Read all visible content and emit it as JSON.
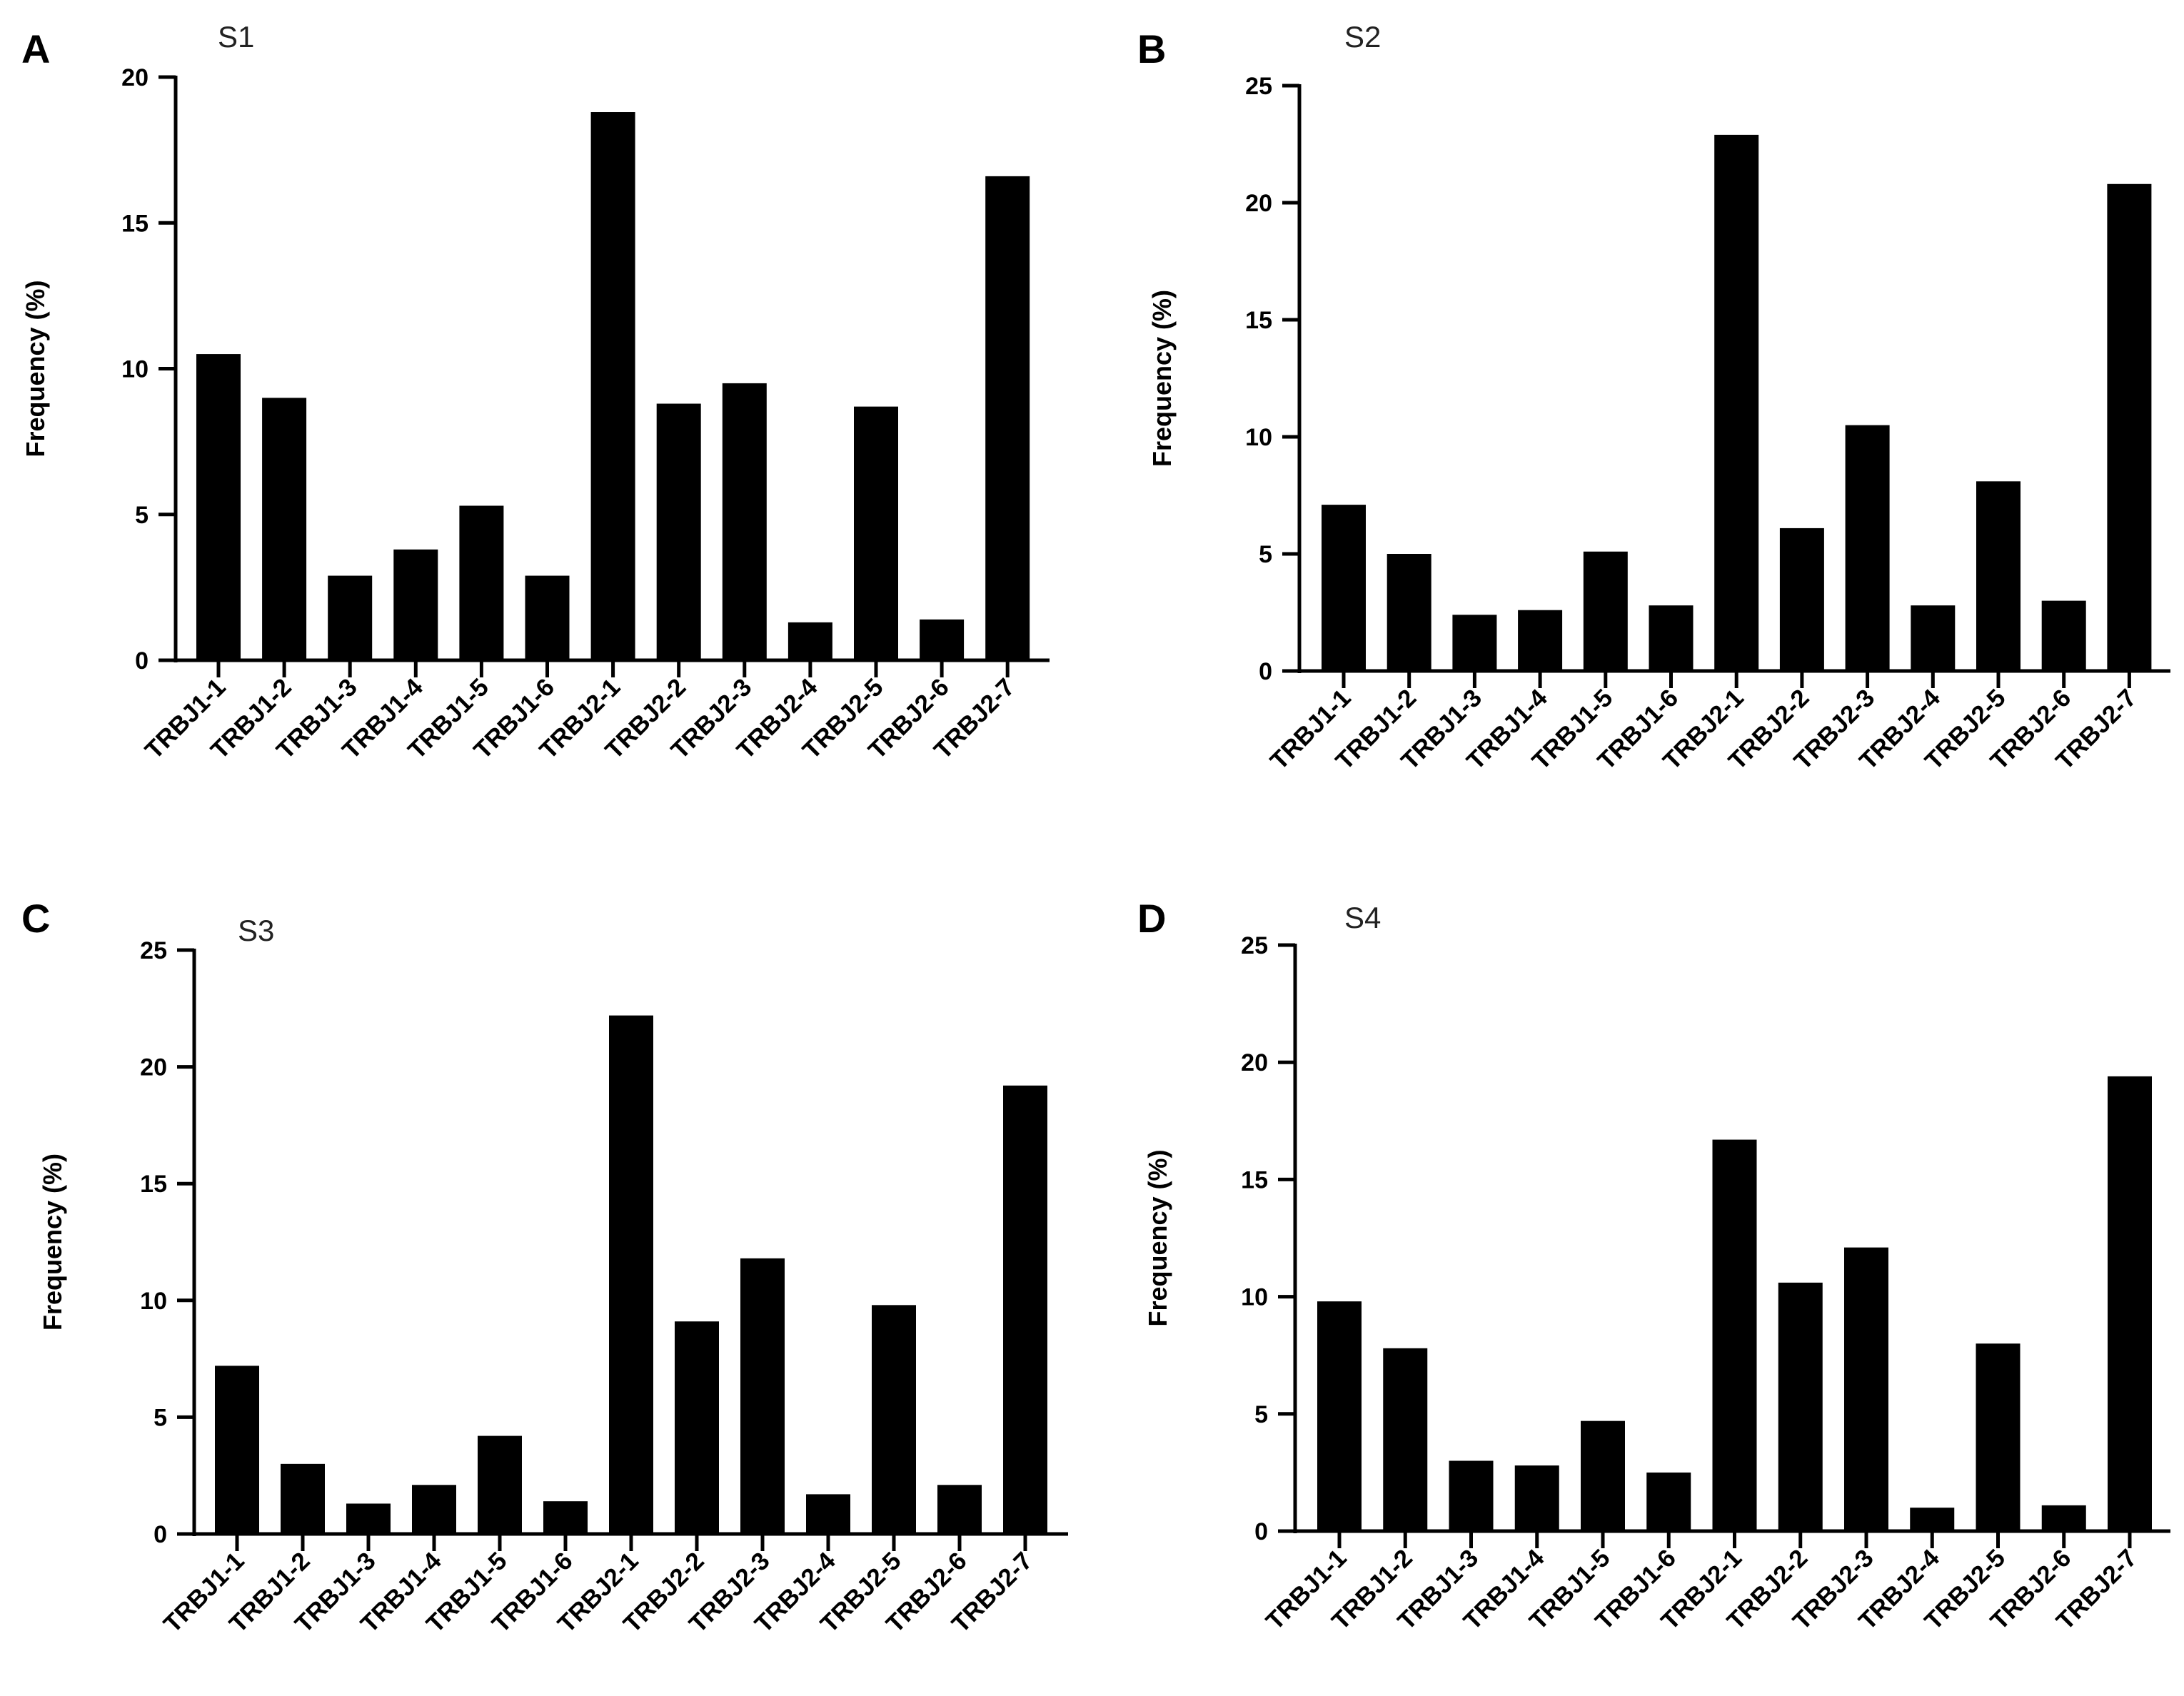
{
  "figure": {
    "panel_letters": [
      "A",
      "B",
      "C",
      "D"
    ]
  },
  "chart_data": [
    {
      "type": "bar",
      "title": "S1",
      "ylabel": "Frequency (%)",
      "xlabel": "",
      "categories": [
        "TRBJ1-1",
        "TRBJ1-2",
        "TRBJ1-3",
        "TRBJ1-4",
        "TRBJ1-5",
        "TRBJ1-6",
        "TRBJ2-1",
        "TRBJ2-2",
        "TRBJ2-3",
        "TRBJ2-4",
        "TRBJ2-5",
        "TRBJ2-6",
        "TRBJ2-7"
      ],
      "values": [
        10.5,
        9.0,
        2.9,
        3.8,
        5.3,
        2.9,
        18.8,
        8.8,
        9.5,
        1.3,
        8.7,
        1.4,
        16.6
      ],
      "ylim": [
        0,
        20
      ],
      "yticks": [
        0,
        5,
        10,
        15,
        20
      ],
      "color": "#000000",
      "grid": false,
      "legend": false
    },
    {
      "type": "bar",
      "title": "S2",
      "ylabel": "Frequency (%)",
      "xlabel": "",
      "categories": [
        "TRBJ1-1",
        "TRBJ1-2",
        "TRBJ1-3",
        "TRBJ1-4",
        "TRBJ1-5",
        "TRBJ1-6",
        "TRBJ2-1",
        "TRBJ2-2",
        "TRBJ2-3",
        "TRBJ2-4",
        "TRBJ2-5",
        "TRBJ2-6",
        "TRBJ2-7"
      ],
      "values": [
        7.1,
        5.0,
        2.4,
        2.6,
        5.1,
        2.8,
        22.9,
        6.1,
        10.5,
        2.8,
        8.1,
        3.0,
        20.8
      ],
      "ylim": [
        0,
        25
      ],
      "yticks": [
        0,
        5,
        10,
        15,
        20,
        25
      ],
      "color": "#000000",
      "grid": false,
      "legend": false
    },
    {
      "type": "bar",
      "title": "S3",
      "ylabel": "Frequency (%)",
      "xlabel": "",
      "categories": [
        "TRBJ1-1",
        "TRBJ1-2",
        "TRBJ1-3",
        "TRBJ1-4",
        "TRBJ1-5",
        "TRBJ1-6",
        "TRBJ2-1",
        "TRBJ2-2",
        "TRBJ2-3",
        "TRBJ2-4",
        "TRBJ2-5",
        "TRBJ2-6",
        "TRBJ2-7"
      ],
      "values": [
        7.2,
        3.0,
        1.3,
        2.1,
        4.2,
        1.4,
        22.2,
        9.1,
        11.8,
        1.7,
        9.8,
        2.1,
        19.2
      ],
      "ylim": [
        0,
        25
      ],
      "yticks": [
        0,
        5,
        10,
        15,
        20,
        25
      ],
      "color": "#000000",
      "grid": false,
      "legend": false
    },
    {
      "type": "bar",
      "title": "S4",
      "ylabel": "Frequency (%)",
      "xlabel": "",
      "categories": [
        "TRBJ1-1",
        "TRBJ1-2",
        "TRBJ1-3",
        "TRBJ1-4",
        "TRBJ1-5",
        "TRBJ1-6",
        "TRBJ2-1",
        "TRBJ2-2",
        "TRBJ2-3",
        "TRBJ2-4",
        "TRBJ2-5",
        "TRBJ2-6",
        "TRBJ2-7"
      ],
      "values": [
        9.8,
        7.8,
        3.0,
        2.8,
        4.7,
        2.5,
        16.7,
        10.6,
        12.1,
        1.0,
        8.0,
        1.1,
        19.4
      ],
      "ylim": [
        0,
        25
      ],
      "yticks": [
        0,
        5,
        10,
        15,
        20,
        25
      ],
      "color": "#000000",
      "grid": false,
      "legend": false
    }
  ]
}
